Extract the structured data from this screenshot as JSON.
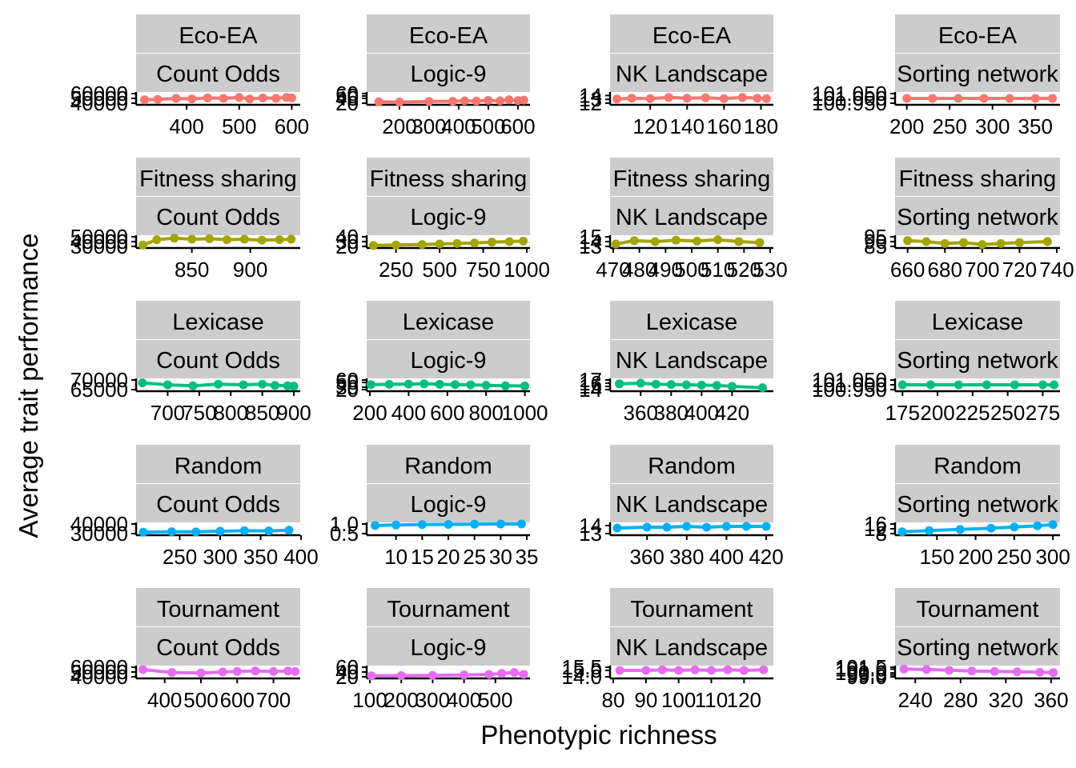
{
  "chart_data": {
    "type": "line",
    "xlabel": "Phenotypic richness",
    "ylabel": "Average trait performance",
    "row_labels": [
      "Eco-EA",
      "Fitness sharing",
      "Lexicase",
      "Random",
      "Tournament"
    ],
    "col_labels": [
      "Count Odds",
      "Logic-9",
      "NK Landscape",
      "Sorting network"
    ],
    "colors": [
      "#F8766D",
      "#A3A500",
      "#00BF7D",
      "#00B0F6",
      "#E76BF3"
    ],
    "grid": false,
    "legend": "none",
    "panels": [
      {
        "row": 0,
        "col": 0,
        "xlim": [
          310,
          610
        ],
        "xticks": [
          400,
          500,
          600
        ],
        "ylim": [
          40000,
          60000
        ],
        "yticks": [
          "40000",
          "50000",
          "60000"
        ],
        "x": [
          320,
          345,
          380,
          410,
          440,
          470,
          500,
          520,
          545,
          570,
          590,
          600
        ],
        "y": [
          47000,
          48000,
          50000,
          49000,
          51000,
          50000,
          52000,
          49000,
          51000,
          50000,
          52000,
          51000
        ]
      },
      {
        "row": 0,
        "col": 1,
        "xlim": [
          100,
          630
        ],
        "xticks": [
          200,
          300,
          400,
          500,
          600
        ],
        "ylim": [
          20,
          60
        ],
        "yticks": [
          "20",
          "40",
          "50",
          "60"
        ],
        "x": [
          130,
          200,
          300,
          380,
          420,
          460,
          500,
          540,
          570,
          600,
          620
        ],
        "y": [
          26,
          25,
          27,
          28,
          30,
          29,
          32,
          30,
          34,
          31,
          33
        ]
      },
      {
        "row": 0,
        "col": 2,
        "xlim": [
          100,
          185
        ],
        "xticks": [
          120,
          140,
          160,
          180
        ],
        "ylim": [
          12,
          14.5
        ],
        "yticks": [
          "12",
          "13",
          "14"
        ],
        "x": [
          102,
          110,
          120,
          130,
          140,
          150,
          160,
          170,
          178,
          183
        ],
        "y": [
          13.1,
          13.3,
          13.2,
          13.5,
          13.3,
          13.4,
          13.2,
          13.5,
          13.3,
          13.2
        ]
      },
      {
        "row": 0,
        "col": 3,
        "xlim": [
          190,
          375
        ],
        "xticks": [
          200,
          250,
          300,
          350
        ],
        "ylim": [
          100.95,
          101.05
        ],
        "yticks": [
          "100.950",
          "101.000",
          "101.050"
        ],
        "x": [
          200,
          230,
          260,
          290,
          320,
          350,
          370
        ],
        "y": [
          101,
          101,
          101,
          101,
          101,
          101,
          101
        ]
      },
      {
        "row": 1,
        "col": 0,
        "xlim": [
          805,
          940
        ],
        "xticks": [
          850,
          900
        ],
        "ylim": [
          30000,
          50000
        ],
        "yticks": [
          "30000",
          "40000",
          "50000"
        ],
        "x": [
          808,
          820,
          835,
          850,
          865,
          880,
          895,
          910,
          925,
          935
        ],
        "y": [
          33000,
          44000,
          47000,
          45000,
          46000,
          44000,
          45000,
          43000,
          44000,
          45000
        ]
      },
      {
        "row": 1,
        "col": 1,
        "xlim": [
          100,
          1000
        ],
        "xticks": [
          250,
          500,
          750,
          1000
        ],
        "ylim": [
          20,
          40
        ],
        "yticks": [
          "20",
          "30",
          "40"
        ],
        "x": [
          120,
          250,
          400,
          500,
          600,
          700,
          800,
          900,
          980
        ],
        "y": [
          22,
          23,
          24,
          25,
          26,
          27,
          29,
          30,
          31
        ]
      },
      {
        "row": 1,
        "col": 2,
        "xlim": [
          470,
          530
        ],
        "xticks": [
          470,
          480,
          490,
          500,
          510,
          520,
          530
        ],
        "ylim": [
          13,
          15
        ],
        "yticks": [
          "13",
          "14",
          "15"
        ],
        "x": [
          471,
          478,
          486,
          494,
          502,
          510,
          518,
          526
        ],
        "y": [
          13.5,
          14.2,
          14.0,
          14.3,
          14.1,
          14.4,
          14.0,
          13.8
        ]
      },
      {
        "row": 1,
        "col": 3,
        "xlim": [
          655,
          740
        ],
        "xticks": [
          660,
          680,
          700,
          720,
          740
        ],
        "ylim": [
          85,
          95
        ],
        "yticks": [
          "85",
          "90",
          "95"
        ],
        "x": [
          660,
          670,
          680,
          690,
          700,
          710,
          720,
          735
        ],
        "y": [
          91,
          90,
          88,
          89,
          87,
          88,
          89,
          90
        ]
      },
      {
        "row": 2,
        "col": 0,
        "xlim": [
          655,
          905
        ],
        "xticks": [
          700,
          750,
          800,
          850,
          900
        ],
        "ylim": [
          65000,
          70000
        ],
        "yticks": [
          "65000",
          "70000"
        ],
        "x": [
          660,
          700,
          740,
          780,
          820,
          850,
          870,
          890,
          900
        ],
        "y": [
          68500,
          67500,
          67000,
          67800,
          67500,
          67800,
          67200,
          67000,
          66800
        ]
      },
      {
        "row": 2,
        "col": 1,
        "xlim": [
          200,
          1010
        ],
        "xticks": [
          200,
          400,
          600,
          800,
          1000
        ],
        "ylim": [
          20,
          60
        ],
        "yticks": [
          "20",
          "30",
          "50",
          "60"
        ],
        "x": [
          205,
          300,
          400,
          480,
          560,
          640,
          720,
          800,
          900,
          1000
        ],
        "y": [
          41,
          42,
          43,
          44,
          42,
          41,
          40,
          38,
          36,
          35
        ]
      },
      {
        "row": 2,
        "col": 2,
        "xlim": [
          342,
          445
        ],
        "xticks": [
          360,
          380,
          400,
          420
        ],
        "ylim": [
          14,
          17
        ],
        "yticks": [
          "14",
          "15",
          "16",
          "17"
        ],
        "x": [
          346,
          360,
          370,
          380,
          390,
          400,
          410,
          420,
          440
        ],
        "y": [
          15.8,
          16.0,
          15.7,
          15.6,
          15.5,
          15.4,
          15.3,
          15.0,
          14.6
        ]
      },
      {
        "row": 2,
        "col": 3,
        "xlim": [
          172,
          285
        ],
        "xticks": [
          175,
          200,
          225,
          250,
          275
        ],
        "ylim": [
          100.95,
          101.05
        ],
        "yticks": [
          "100.950",
          "101.000",
          "101.050"
        ],
        "x": [
          175,
          195,
          215,
          235,
          255,
          275,
          283
        ],
        "y": [
          101,
          101,
          101,
          101,
          101,
          101,
          101
        ]
      },
      {
        "row": 3,
        "col": 0,
        "xlim": [
          200,
          395
        ],
        "xticks": [
          250,
          300,
          350,
          400
        ],
        "ylim": [
          30000,
          40000
        ],
        "yticks": [
          "30000",
          "40000"
        ],
        "x": [
          205,
          240,
          270,
          300,
          330,
          360,
          385
        ],
        "y": [
          31500,
          32000,
          31800,
          32500,
          33000,
          32800,
          33500
        ]
      },
      {
        "row": 3,
        "col": 1,
        "xlim": [
          5,
          35
        ],
        "xticks": [
          10,
          15,
          20,
          25,
          30,
          35
        ],
        "ylim": [
          0.5,
          1.0
        ],
        "yticks": [
          "0.5",
          "1.0"
        ],
        "x": [
          6,
          10,
          15,
          20,
          25,
          30,
          34
        ],
        "y": [
          0.92,
          0.95,
          0.97,
          0.98,
          0.99,
          1.0,
          1.0
        ]
      },
      {
        "row": 3,
        "col": 2,
        "xlim": [
          343,
          422
        ],
        "xticks": [
          360,
          380,
          400,
          420
        ],
        "ylim": [
          13,
          14.2
        ],
        "yticks": [
          "13",
          "14"
        ],
        "x": [
          345,
          360,
          370,
          380,
          390,
          400,
          410,
          420
        ],
        "y": [
          13.7,
          13.8,
          13.8,
          13.9,
          13.8,
          13.9,
          13.9,
          13.9
        ]
      },
      {
        "row": 3,
        "col": 3,
        "xlim": [
          100,
          305
        ],
        "xticks": [
          150,
          200,
          250,
          300
        ],
        "ylim": [
          8,
          16
        ],
        "yticks": [
          "8",
          "12",
          "16"
        ],
        "x": [
          105,
          140,
          180,
          220,
          250,
          280,
          300
        ],
        "y": [
          9.5,
          10.5,
          11.5,
          12.5,
          13.5,
          14.5,
          15.5
        ]
      },
      {
        "row": 4,
        "col": 0,
        "xlim": [
          330,
          765
        ],
        "xticks": [
          400,
          500,
          600,
          700
        ],
        "ylim": [
          40000,
          60000
        ],
        "yticks": [
          "40000",
          "50000",
          "60000"
        ],
        "x": [
          340,
          420,
          500,
          560,
          600,
          650,
          700,
          740,
          760
        ],
        "y": [
          55000,
          49000,
          48000,
          50000,
          51000,
          52000,
          51000,
          52000,
          51000
        ]
      },
      {
        "row": 4,
        "col": 1,
        "xlim": [
          100,
          600
        ],
        "xticks": [
          100,
          200,
          300,
          400,
          500
        ],
        "ylim": [
          20,
          60
        ],
        "yticks": [
          "20",
          "40",
          "60"
        ],
        "x": [
          105,
          200,
          300,
          400,
          480,
          520,
          560,
          590
        ],
        "y": [
          24,
          25,
          26,
          28,
          30,
          34,
          38,
          30
        ]
      },
      {
        "row": 4,
        "col": 2,
        "xlim": [
          80,
          128
        ],
        "xticks": [
          80,
          90,
          100,
          110,
          120
        ],
        "ylim": [
          14.0,
          15.5
        ],
        "yticks": [
          "14.0",
          "15.0",
          "15.5"
        ],
        "x": [
          82,
          90,
          95,
          100,
          105,
          110,
          115,
          120,
          126
        ],
        "y": [
          15.0,
          15.0,
          15.1,
          15.0,
          15.1,
          15.0,
          15.1,
          15.0,
          15.1
        ]
      },
      {
        "row": 4,
        "col": 3,
        "xlim": [
          225,
          365
        ],
        "xticks": [
          240,
          280,
          320,
          360
        ],
        "ylim": [
          99,
          101.5
        ],
        "yticks": [
          "99.0",
          "99.5",
          "100.0",
          "101.0",
          "101.5"
        ],
        "x": [
          230,
          250,
          270,
          290,
          310,
          330,
          350,
          362
        ],
        "y": [
          101,
          100.9,
          100.7,
          100.5,
          100.4,
          100.3,
          100.2,
          100.1
        ]
      }
    ]
  }
}
